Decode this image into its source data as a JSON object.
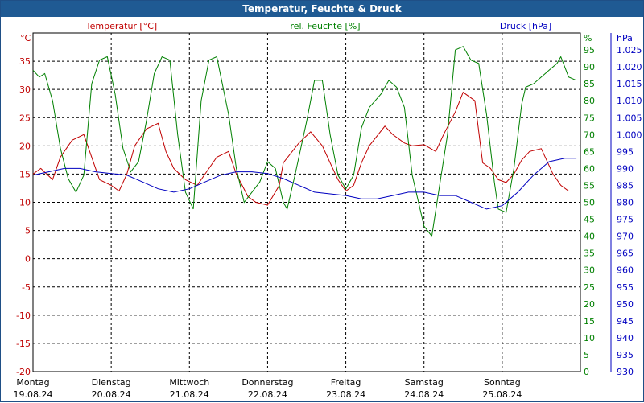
{
  "window": {
    "title": "Temperatur, Feuchte & Druck"
  },
  "colors": {
    "temp": "#c00000",
    "hum": "#008000",
    "press": "#0000c0",
    "grid": "#000000",
    "titlebar": "#1f5a93"
  },
  "chart_data": {
    "type": "line",
    "grid": true,
    "axes": {
      "temp": {
        "label": "Temperatur [°C]",
        "unit": "°C",
        "range": [
          -20,
          40
        ],
        "ticks": [
          -20,
          -15,
          -10,
          -5,
          0,
          5,
          10,
          15,
          20,
          25,
          30,
          35
        ]
      },
      "hum": {
        "label": "rel. Feuchte [%]",
        "unit": "%",
        "range": [
          0,
          100
        ],
        "ticks": [
          0,
          5,
          10,
          15,
          20,
          25,
          30,
          35,
          40,
          45,
          50,
          55,
          60,
          65,
          70,
          75,
          80,
          85,
          90,
          95
        ]
      },
      "press": {
        "label": "Druck [hPa]",
        "unit": "hPa",
        "range": [
          930,
          1030
        ],
        "ticks": [
          "930",
          "935",
          "940",
          "945",
          "950",
          "955",
          "960",
          "965",
          "970",
          "975",
          "980",
          "985",
          "990",
          "995",
          "1.000",
          "1.005",
          "1.010",
          "1.015",
          "1.020",
          "1.025"
        ]
      }
    },
    "x_range": [
      0,
      7
    ],
    "days": [
      {
        "name": "Montag",
        "date": "19.08.24"
      },
      {
        "name": "Dienstag",
        "date": "20.08.24"
      },
      {
        "name": "Mittwoch",
        "date": "21.08.24"
      },
      {
        "name": "Donnerstag",
        "date": "22.08.24"
      },
      {
        "name": "Freitag",
        "date": "23.08.24"
      },
      {
        "name": "Samstag",
        "date": "24.08.24"
      },
      {
        "name": "Sonntag",
        "date": "25.08.24"
      }
    ],
    "series": [
      {
        "name": "Temperatur [°C]",
        "axis": "temp",
        "x": [
          0,
          0.1,
          0.25,
          0.35,
          0.5,
          0.65,
          0.75,
          0.85,
          1.0,
          1.1,
          1.2,
          1.3,
          1.45,
          1.6,
          1.7,
          1.8,
          1.95,
          2.1,
          2.2,
          2.35,
          2.5,
          2.6,
          2.75,
          2.85,
          3.0,
          3.15,
          3.2,
          3.4,
          3.55,
          3.7,
          3.8,
          3.9,
          4.0,
          4.1,
          4.2,
          4.3,
          4.5,
          4.6,
          4.75,
          4.85,
          5.0,
          5.15,
          5.25,
          5.4,
          5.5,
          5.65,
          5.75,
          5.85,
          5.95,
          6.05,
          6.15,
          6.25,
          6.35,
          6.5,
          6.65,
          6.75,
          6.85,
          6.95
        ],
        "values": [
          15,
          16,
          14,
          18,
          21,
          22,
          18,
          14,
          13,
          12,
          15,
          20,
          23,
          24,
          19,
          16,
          14,
          13,
          15,
          18,
          19,
          15,
          11,
          10,
          9.5,
          13,
          17,
          20.5,
          22.5,
          20,
          17,
          14,
          12,
          13,
          17,
          20,
          23.5,
          22,
          20.5,
          20,
          20.2,
          19,
          22,
          26,
          29.5,
          28,
          17,
          16,
          14,
          13.5,
          15,
          17.5,
          19,
          19.5,
          15,
          13,
          12,
          12
        ]
      },
      {
        "name": "rel. Feuchte [%]",
        "axis": "hum",
        "x": [
          0,
          0.08,
          0.15,
          0.25,
          0.35,
          0.45,
          0.55,
          0.65,
          0.75,
          0.85,
          0.95,
          1.05,
          1.15,
          1.25,
          1.35,
          1.45,
          1.55,
          1.65,
          1.75,
          1.85,
          1.95,
          2.05,
          2.15,
          2.25,
          2.35,
          2.5,
          2.6,
          2.7,
          2.8,
          2.9,
          3.0,
          3.1,
          3.2,
          3.25,
          3.35,
          3.5,
          3.6,
          3.7,
          3.8,
          3.9,
          4.0,
          4.1,
          4.2,
          4.3,
          4.45,
          4.55,
          4.65,
          4.75,
          4.85,
          5.0,
          5.1,
          5.2,
          5.3,
          5.4,
          5.5,
          5.6,
          5.7,
          5.8,
          5.9,
          5.95,
          6.05,
          6.15,
          6.25,
          6.3,
          6.4,
          6.5,
          6.6,
          6.7,
          6.75,
          6.85,
          6.95
        ],
        "values": [
          89,
          87,
          88,
          80,
          66,
          57,
          53,
          58,
          85,
          92,
          93,
          82,
          66,
          59,
          62,
          74,
          88,
          93,
          92,
          70,
          53,
          48,
          80,
          92,
          93,
          76,
          60,
          50,
          53,
          56,
          62,
          60,
          50,
          48,
          58,
          74,
          86,
          86,
          70,
          58,
          54,
          58,
          72,
          78,
          82,
          86,
          84,
          78,
          58,
          43,
          40,
          55,
          70,
          95,
          96,
          92,
          91,
          76,
          56,
          48,
          47,
          60,
          79,
          84,
          85,
          87,
          89,
          91,
          93,
          87,
          86
        ]
      },
      {
        "name": "Druck [hPa]",
        "axis": "press",
        "x": [
          0,
          0.2,
          0.4,
          0.6,
          0.8,
          1.0,
          1.2,
          1.4,
          1.6,
          1.8,
          2.0,
          2.2,
          2.4,
          2.6,
          2.8,
          3.0,
          3.2,
          3.4,
          3.6,
          3.8,
          4.0,
          4.2,
          4.4,
          4.6,
          4.8,
          5.0,
          5.2,
          5.4,
          5.6,
          5.8,
          6.0,
          6.2,
          6.4,
          6.6,
          6.8,
          6.95
        ],
        "values": [
          988,
          989,
          990,
          990,
          989,
          988.5,
          988,
          986,
          984,
          983,
          984,
          986,
          988,
          989,
          989,
          988.5,
          987,
          985,
          983,
          982.5,
          982,
          981,
          981,
          982,
          983,
          983,
          982,
          982,
          980,
          978,
          979,
          983,
          988,
          992,
          993,
          993
        ]
      }
    ]
  }
}
